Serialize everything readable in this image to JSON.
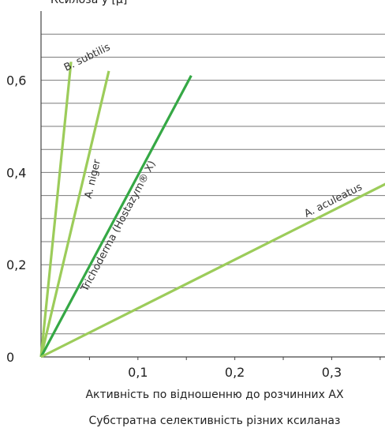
{
  "ylabel_partial": "Ксилоза у [μ]",
  "chart_data": {
    "type": "line",
    "title": "",
    "xlabel": "Активність по відношенню до розчинних АХ",
    "caption": "Субстратна селективність різних ксиланаз",
    "ylabel": "",
    "xlim": [
      0,
      0.355
    ],
    "ylim": [
      0,
      0.75
    ],
    "x_ticks": [
      {
        "value": 0.1,
        "label": "0,1"
      },
      {
        "value": 0.2,
        "label": "0,2"
      },
      {
        "value": 0.3,
        "label": "0,3"
      }
    ],
    "y_ticks": [
      {
        "value": 0,
        "label": "0"
      },
      {
        "value": 0.2,
        "label": "0,2"
      },
      {
        "value": 0.4,
        "label": "0,4"
      },
      {
        "value": 0.6,
        "label": "0,6"
      }
    ],
    "grid": "horizontal",
    "series": [
      {
        "name": "B. subtilis",
        "color": "#9ccc5a",
        "points": [
          [
            0,
            0
          ],
          [
            0.031,
            0.64
          ]
        ]
      },
      {
        "name": "A. niger",
        "color": "#9ccc5a",
        "points": [
          [
            0,
            0
          ],
          [
            0.07,
            0.62
          ]
        ]
      },
      {
        "name": "Trichoderma (Hostazym® X)",
        "color": "#35a845",
        "points": [
          [
            0,
            0
          ],
          [
            0.155,
            0.61
          ]
        ]
      },
      {
        "name": "A. aculeatus",
        "color": "#9ccc5a",
        "points": [
          [
            0,
            0
          ],
          [
            0.365,
            0.385
          ]
        ]
      }
    ]
  }
}
